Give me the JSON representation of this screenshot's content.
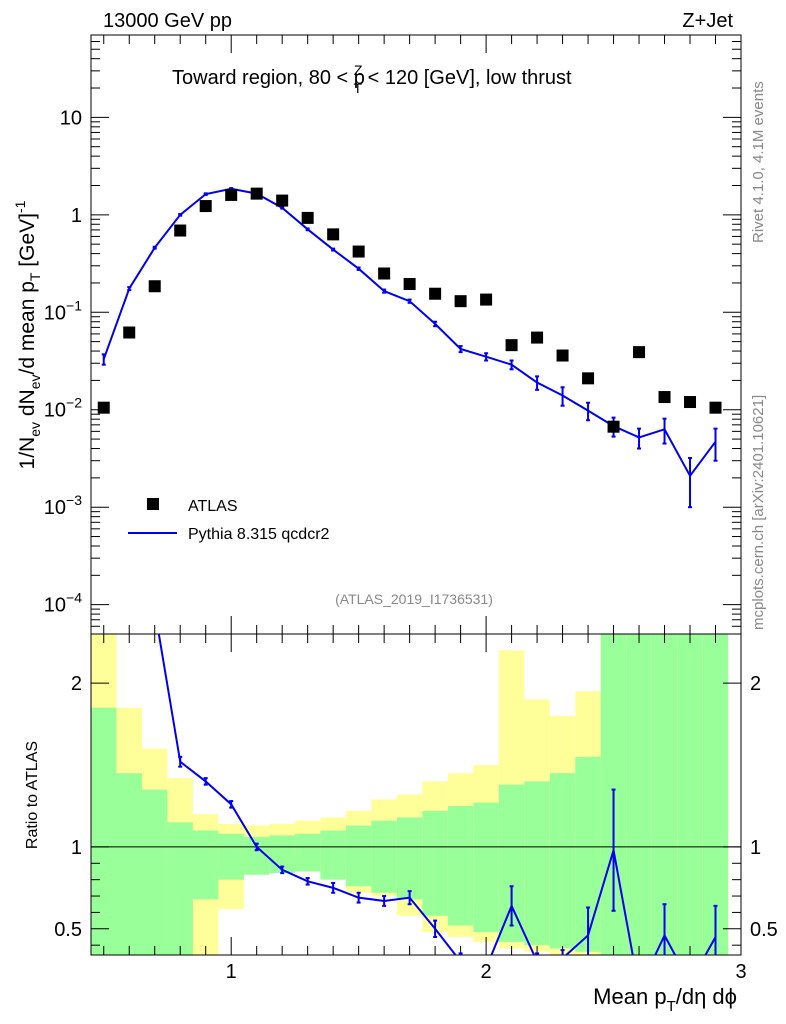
{
  "header": {
    "energy_label": "13000 GeV pp",
    "process_label": "Z+Jet",
    "plot_title": "Toward region, 80 < p",
    "title_sup": "Z",
    "title_sub": "T",
    "title_rest": " < 120 [GeV], low thrust",
    "rivet_label": "Rivet 4.1.0,  4.1M events",
    "source_label": "mcplots.cern.ch [arXiv:2401.10621]",
    "analysis_label": "(ATLAS_2019_I1736531)"
  },
  "legend": {
    "data_label": "ATLAS",
    "mc_label": "Pythia 8.315 qcdcr2"
  },
  "axes": {
    "main_y_part1": "1/N",
    "main_y_sub1": "ev",
    "main_y_part2": " dN",
    "main_y_sub2": "ev",
    "main_y_part3": "/d mean p",
    "main_y_sub3": "T",
    "main_y_part4": " [GeV]",
    "main_y_sup4": "-1",
    "ratio_y": "Ratio to ATLAS",
    "x_part1": "Mean p",
    "x_sub1": "T",
    "x_part2": "/dη dϕ",
    "main_y_ticks": [
      {
        "value": 10,
        "label": "10"
      },
      {
        "value": 1,
        "label": "1"
      },
      {
        "value": 0.1,
        "label": "10",
        "exp": "−1"
      },
      {
        "value": 0.01,
        "label": "10",
        "exp": "−2"
      },
      {
        "value": 0.001,
        "label": "10",
        "exp": "−3"
      },
      {
        "value": 0.0001,
        "label": "10",
        "exp": "−4"
      }
    ],
    "ratio_y_ticks": [
      {
        "value": 0.5,
        "label": "0.5"
      },
      {
        "value": 1,
        "label": "1"
      },
      {
        "value": 2,
        "label": "2"
      }
    ],
    "x_ticks": [
      {
        "value": 1,
        "label": "1"
      },
      {
        "value": 2,
        "label": "2"
      },
      {
        "value": 3,
        "label": "3"
      }
    ]
  },
  "chart_data": {
    "type": "scatter",
    "x_range": [
      0.45,
      3.0
    ],
    "main_y_range_log": [
      5e-05,
      70
    ],
    "ratio_y_range": [
      0.34,
      2.3
    ],
    "bin_edges": [
      0.45,
      0.55,
      0.65,
      0.75,
      0.85,
      0.95,
      1.05,
      1.15,
      1.25,
      1.35,
      1.45,
      1.55,
      1.65,
      1.75,
      1.85,
      1.95,
      2.05,
      2.15,
      2.25,
      2.35,
      2.45,
      2.55,
      2.65,
      2.75,
      2.85,
      2.95
    ],
    "series": [
      {
        "name": "ATLAS",
        "x": [
          0.5,
          0.6,
          0.7,
          0.8,
          0.9,
          1.0,
          1.1,
          1.2,
          1.3,
          1.4,
          1.5,
          1.6,
          1.7,
          1.8,
          1.9,
          2.0,
          2.1,
          2.2,
          2.3,
          2.4,
          2.5,
          2.6,
          2.7,
          2.8,
          2.9
        ],
        "y": [
          0.0105,
          0.062,
          0.185,
          0.69,
          1.23,
          1.6,
          1.65,
          1.4,
          0.93,
          0.63,
          0.42,
          0.25,
          0.195,
          0.155,
          0.13,
          0.135,
          0.046,
          0.055,
          0.036,
          0.021,
          0.0067,
          0.039,
          0.0135,
          0.012,
          0.0105
        ]
      },
      {
        "name": "Pythia 8.315 qcdcr2",
        "x": [
          0.5,
          0.6,
          0.7,
          0.8,
          0.9,
          1.0,
          1.1,
          1.2,
          1.3,
          1.4,
          1.5,
          1.6,
          1.7,
          1.8,
          1.9,
          2.0,
          2.1,
          2.2,
          2.3,
          2.4,
          2.5,
          2.6,
          2.7,
          2.8,
          2.9
        ],
        "y": [
          0.033,
          0.175,
          0.46,
          1.0,
          1.63,
          1.85,
          1.65,
          1.18,
          0.71,
          0.44,
          0.28,
          0.165,
          0.13,
          0.076,
          0.042,
          0.035,
          0.029,
          0.019,
          0.014,
          0.0098,
          0.0068,
          0.0052,
          0.0063,
          0.0021,
          0.0047
        ],
        "yerr": [
          0.004,
          0.006,
          0.01,
          0.02,
          0.03,
          0.03,
          0.03,
          0.02,
          0.015,
          0.01,
          0.008,
          0.006,
          0.005,
          0.004,
          0.003,
          0.003,
          0.003,
          0.003,
          0.003,
          0.002,
          0.0015,
          0.0012,
          0.0018,
          0.0011,
          0.0017
        ]
      }
    ],
    "ratio": {
      "x": [
        0.5,
        0.6,
        0.7,
        0.8,
        0.9,
        1.0,
        1.1,
        1.2,
        1.3,
        1.4,
        1.5,
        1.6,
        1.7,
        1.8,
        1.9,
        2.0,
        2.1,
        2.2,
        2.3,
        2.4,
        2.5,
        2.6,
        2.7,
        2.8,
        2.9
      ],
      "y": [
        3.1,
        2.8,
        2.45,
        1.52,
        1.4,
        1.26,
        1.0,
        0.86,
        0.79,
        0.75,
        0.69,
        0.67,
        0.69,
        0.5,
        0.3,
        0.26,
        0.64,
        0.3,
        0.32,
        0.46,
        0.98,
        0.13,
        0.46,
        0.17,
        0.45
      ],
      "yerr": [
        0.1,
        0.05,
        0.04,
        0.03,
        0.02,
        0.02,
        0.02,
        0.02,
        0.02,
        0.03,
        0.03,
        0.03,
        0.04,
        0.05,
        0.05,
        0.05,
        0.12,
        0.05,
        0.05,
        0.17,
        0.37,
        0.05,
        0.19,
        0.05,
        0.19
      ]
    },
    "band_green_lo": [
      0.34,
      0.34,
      0.34,
      0.34,
      0.68,
      0.8,
      0.83,
      0.84,
      0.85,
      0.8,
      0.76,
      0.72,
      0.68,
      0.58,
      0.52,
      0.48,
      0.42,
      0.4,
      0.38,
      0.36,
      0.34,
      0.34,
      0.34,
      0.34,
      0.34
    ],
    "band_green_hi": [
      1.85,
      1.45,
      1.35,
      1.15,
      1.1,
      1.08,
      1.06,
      1.07,
      1.08,
      1.1,
      1.13,
      1.16,
      1.18,
      1.22,
      1.25,
      1.27,
      1.38,
      1.4,
      1.45,
      1.55,
      2.3,
      2.3,
      2.3,
      2.3,
      2.3
    ],
    "band_yellow_lo": [
      0.34,
      0.34,
      0.34,
      0.34,
      0.34,
      0.62,
      0.9,
      0.93,
      0.92,
      0.87,
      0.72,
      0.7,
      0.58,
      0.48,
      0.45,
      0.42,
      0.38,
      0.36,
      0.34,
      0.34,
      0.34,
      0.34,
      0.34,
      0.34,
      0.34
    ],
    "band_yellow_hi": [
      2.3,
      1.85,
      1.6,
      1.42,
      1.2,
      1.14,
      1.13,
      1.14,
      1.16,
      1.18,
      1.22,
      1.29,
      1.32,
      1.4,
      1.45,
      1.5,
      2.2,
      1.9,
      1.8,
      1.95,
      2.3,
      2.3,
      2.3,
      2.25,
      2.22
    ],
    "colors": {
      "data": "#000000",
      "mc": "#0000ee",
      "band_green": "#99ff99",
      "band_yellow": "#ffff99",
      "grey_text": "#888888"
    }
  }
}
